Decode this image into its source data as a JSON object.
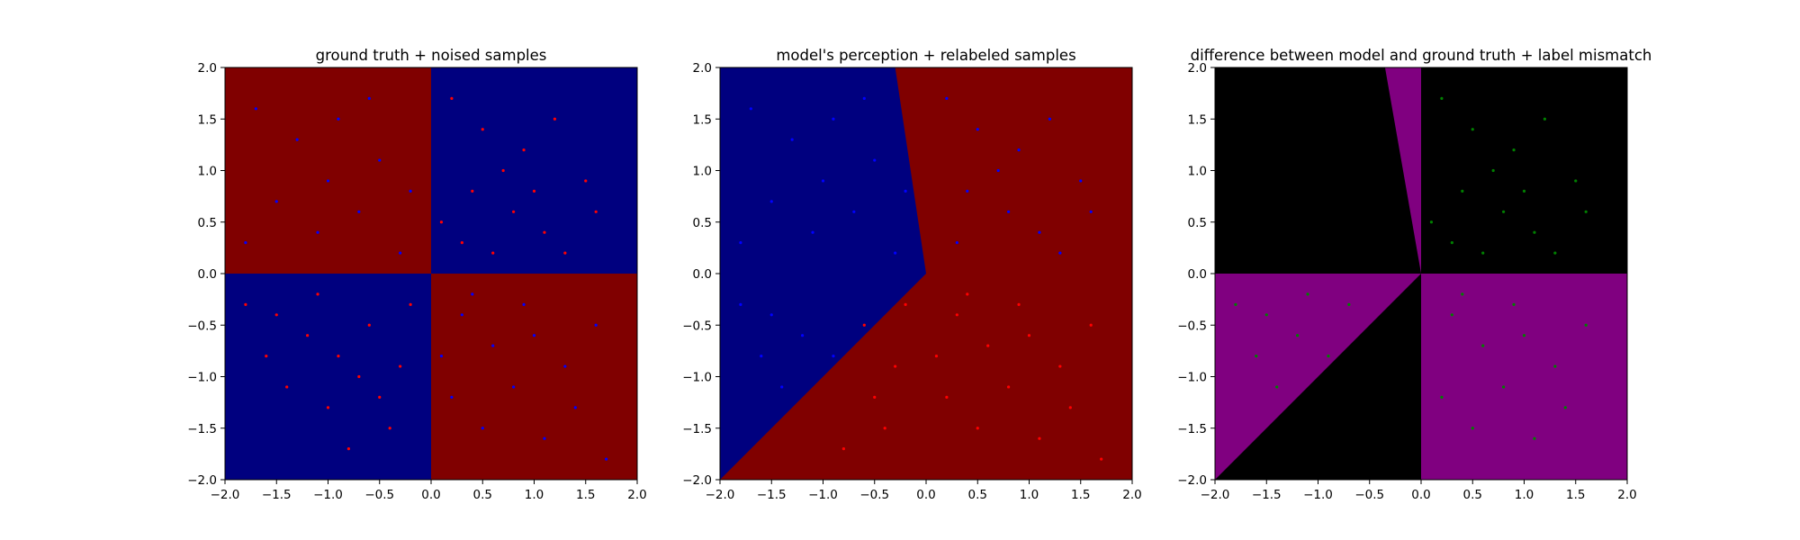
{
  "chart_data": [
    {
      "type": "scatter",
      "title": "ground truth + noised samples",
      "xlabel": "",
      "ylabel": "",
      "xlim": [
        -2.0,
        2.0
      ],
      "ylim": [
        -2.0,
        2.0
      ],
      "xticks": [
        "−2.0",
        "−1.5",
        "−1.0",
        "−0.5",
        "0.0",
        "0.5",
        "1.0",
        "1.5",
        "2.0"
      ],
      "yticks": [
        "−2.0",
        "−1.5",
        "−1.0",
        "−0.5",
        "0.0",
        "0.5",
        "1.0",
        "1.5",
        "2.0"
      ],
      "background_regions": [
        {
          "region": "x<0, y>0",
          "color": "#800000"
        },
        {
          "region": "x>0, y>0",
          "color": "#00007f"
        },
        {
          "region": "x<0, y<0",
          "color": "#00007f"
        },
        {
          "region": "x>0, y<0",
          "color": "#800000"
        }
      ],
      "series": [
        {
          "color": "#ff0000",
          "points": [
            [
              0.2,
              1.7
            ],
            [
              0.5,
              1.4
            ],
            [
              0.9,
              1.2
            ],
            [
              1.2,
              1.5
            ],
            [
              0.4,
              0.8
            ],
            [
              0.8,
              0.6
            ],
            [
              1.1,
              0.4
            ],
            [
              1.5,
              0.9
            ],
            [
              0.3,
              0.3
            ],
            [
              0.7,
              1.0
            ],
            [
              1.3,
              0.2
            ],
            [
              1.6,
              0.6
            ],
            [
              0.1,
              0.5
            ],
            [
              0.6,
              0.2
            ],
            [
              1.0,
              0.8
            ],
            [
              -1.8,
              -0.3
            ],
            [
              -1.5,
              -0.4
            ],
            [
              -1.2,
              -0.6
            ],
            [
              -0.9,
              -0.8
            ],
            [
              -0.6,
              -0.5
            ],
            [
              -0.3,
              -0.9
            ],
            [
              -1.4,
              -1.1
            ],
            [
              -1.0,
              -1.3
            ],
            [
              -0.7,
              -1.0
            ],
            [
              -0.4,
              -1.5
            ],
            [
              -1.6,
              -0.8
            ],
            [
              -0.8,
              -1.7
            ],
            [
              -0.2,
              -0.3
            ],
            [
              -1.1,
              -0.2
            ],
            [
              -0.5,
              -1.2
            ]
          ]
        },
        {
          "color": "#0000ff",
          "points": [
            [
              -1.7,
              1.6
            ],
            [
              -1.3,
              1.3
            ],
            [
              -0.9,
              1.5
            ],
            [
              -0.5,
              1.1
            ],
            [
              -0.2,
              0.8
            ],
            [
              -1.5,
              0.7
            ],
            [
              -1.1,
              0.4
            ],
            [
              -0.7,
              0.6
            ],
            [
              -0.3,
              0.2
            ],
            [
              -1.8,
              0.3
            ],
            [
              -0.6,
              1.7
            ],
            [
              -1.0,
              0.9
            ],
            [
              0.3,
              -0.4
            ],
            [
              0.6,
              -0.7
            ],
            [
              0.9,
              -0.3
            ],
            [
              1.3,
              -0.9
            ],
            [
              1.6,
              -0.5
            ],
            [
              0.2,
              -1.2
            ],
            [
              0.5,
              -1.5
            ],
            [
              0.8,
              -1.1
            ],
            [
              1.1,
              -1.6
            ],
            [
              1.4,
              -1.3
            ],
            [
              0.4,
              -0.2
            ],
            [
              1.0,
              -0.6
            ],
            [
              1.7,
              -1.8
            ],
            [
              0.1,
              -0.8
            ]
          ]
        }
      ]
    },
    {
      "type": "scatter",
      "title": "model's perception + relabeled samples",
      "xlabel": "",
      "ylabel": "",
      "xlim": [
        -2.0,
        2.0
      ],
      "ylim": [
        -2.0,
        2.0
      ],
      "xticks": [
        "−2.0",
        "−1.5",
        "−1.0",
        "−0.5",
        "0.0",
        "0.5",
        "1.0",
        "1.5",
        "2.0"
      ],
      "yticks": [
        "−2.0",
        "−1.5",
        "−1.0",
        "−0.5",
        "0.0",
        "0.5",
        "1.0",
        "1.5",
        "2.0"
      ],
      "background_regions": [
        {
          "region": "blue wedge: (−2,2)→(−0.3,2)→(0,0)→(−2,−2)",
          "color": "#00007f"
        },
        {
          "region": "remainder",
          "color": "#800000"
        }
      ],
      "series": [
        {
          "color": "#0000ff",
          "points": [
            [
              -1.7,
              1.6
            ],
            [
              -1.3,
              1.3
            ],
            [
              -0.9,
              1.5
            ],
            [
              -0.5,
              1.1
            ],
            [
              -0.2,
              0.8
            ],
            [
              -1.5,
              0.7
            ],
            [
              -1.1,
              0.4
            ],
            [
              -0.7,
              0.6
            ],
            [
              -0.3,
              0.2
            ],
            [
              -1.8,
              0.3
            ],
            [
              -0.6,
              1.7
            ],
            [
              -1.0,
              0.9
            ],
            [
              -1.8,
              -0.3
            ],
            [
              -1.5,
              -0.4
            ],
            [
              -1.2,
              -0.6
            ],
            [
              -0.9,
              -0.8
            ],
            [
              -1.6,
              -0.8
            ],
            [
              -1.4,
              -1.1
            ],
            [
              0.2,
              1.7
            ],
            [
              0.5,
              1.4
            ],
            [
              0.9,
              1.2
            ],
            [
              1.2,
              1.5
            ],
            [
              0.4,
              0.8
            ],
            [
              0.8,
              0.6
            ],
            [
              1.1,
              0.4
            ],
            [
              1.5,
              0.9
            ],
            [
              0.3,
              0.3
            ],
            [
              0.7,
              1.0
            ],
            [
              1.3,
              0.2
            ],
            [
              1.6,
              0.6
            ]
          ]
        },
        {
          "color": "#ff0000",
          "points": [
            [
              0.3,
              -0.4
            ],
            [
              0.6,
              -0.7
            ],
            [
              0.9,
              -0.3
            ],
            [
              1.3,
              -0.9
            ],
            [
              1.6,
              -0.5
            ],
            [
              0.2,
              -1.2
            ],
            [
              0.5,
              -1.5
            ],
            [
              0.8,
              -1.1
            ],
            [
              1.1,
              -1.6
            ],
            [
              1.4,
              -1.3
            ],
            [
              0.4,
              -0.2
            ],
            [
              1.0,
              -0.6
            ],
            [
              1.7,
              -1.8
            ],
            [
              0.1,
              -0.8
            ],
            [
              -0.6,
              -0.5
            ],
            [
              -0.3,
              -0.9
            ],
            [
              -0.2,
              -0.3
            ],
            [
              -0.4,
              -1.5
            ],
            [
              -0.5,
              -1.2
            ],
            [
              -0.8,
              -1.7
            ]
          ]
        }
      ]
    },
    {
      "type": "scatter",
      "title": "difference between model and ground truth + label mismatch",
      "xlabel": "",
      "ylabel": "",
      "xlim": [
        -2.0,
        2.0
      ],
      "ylim": [
        -2.0,
        2.0
      ],
      "xticks": [
        "−2.0",
        "−1.5",
        "−1.0",
        "−0.5",
        "0.0",
        "0.5",
        "1.0",
        "1.5",
        "2.0"
      ],
      "yticks": [
        "−2.0",
        "−1.5",
        "−1.0",
        "−0.5",
        "0.0",
        "0.5",
        "1.0",
        "1.5",
        "2.0"
      ],
      "background_regions": [
        {
          "region": "base",
          "color": "#000000"
        },
        {
          "region": "thin wedge: (−0.35,2)→(0,2)→(0,0)",
          "color": "#800080"
        },
        {
          "region": "x>0, y<0",
          "color": "#800080"
        },
        {
          "region": "triangle: (−2,0)→(0,0)→(−2,−2)",
          "color": "#800080"
        }
      ],
      "series": [
        {
          "color": "#008000",
          "points": [
            [
              0.2,
              1.7
            ],
            [
              0.5,
              1.4
            ],
            [
              0.9,
              1.2
            ],
            [
              1.2,
              1.5
            ],
            [
              0.4,
              0.8
            ],
            [
              0.8,
              0.6
            ],
            [
              1.1,
              0.4
            ],
            [
              1.5,
              0.9
            ],
            [
              0.3,
              0.3
            ],
            [
              0.7,
              1.0
            ],
            [
              1.3,
              0.2
            ],
            [
              1.6,
              0.6
            ],
            [
              0.1,
              0.5
            ],
            [
              0.6,
              0.2
            ],
            [
              1.0,
              0.8
            ],
            [
              0.3,
              -0.4
            ],
            [
              0.6,
              -0.7
            ],
            [
              0.9,
              -0.3
            ],
            [
              1.3,
              -0.9
            ],
            [
              1.6,
              -0.5
            ],
            [
              0.2,
              -1.2
            ],
            [
              0.5,
              -1.5
            ],
            [
              0.8,
              -1.1
            ],
            [
              1.1,
              -1.6
            ],
            [
              1.4,
              -1.3
            ],
            [
              0.4,
              -0.2
            ],
            [
              1.0,
              -0.6
            ],
            [
              -1.8,
              -0.3
            ],
            [
              -1.5,
              -0.4
            ],
            [
              -1.2,
              -0.6
            ],
            [
              -0.9,
              -0.8
            ],
            [
              -1.6,
              -0.8
            ],
            [
              -1.4,
              -1.1
            ],
            [
              -1.1,
              -0.2
            ],
            [
              -0.7,
              -0.3
            ]
          ]
        }
      ]
    }
  ]
}
